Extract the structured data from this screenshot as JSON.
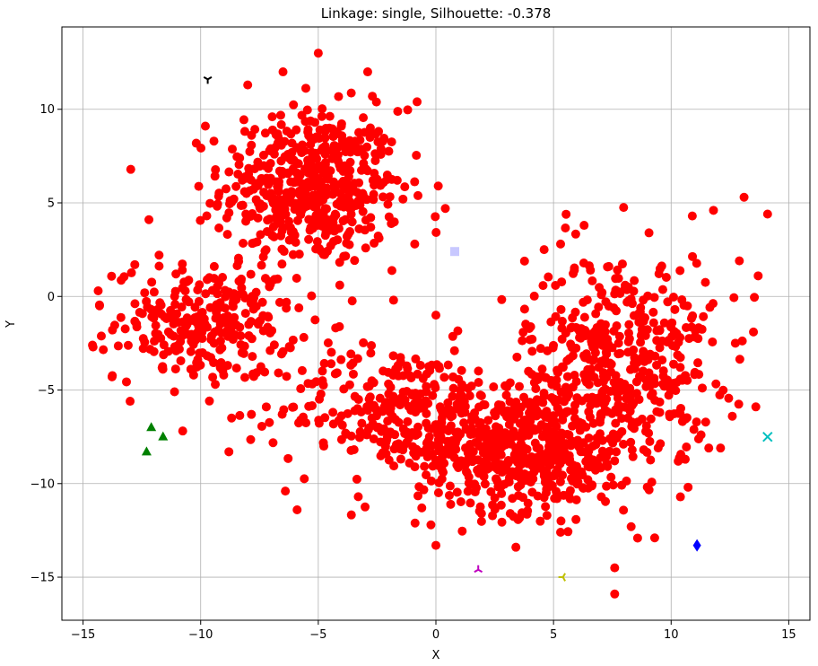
{
  "chart_data": {
    "type": "scatter",
    "title": "Linkage: single, Silhouette: -0.378",
    "xlabel": "X",
    "ylabel": "Y",
    "xlim": [
      -15.9,
      15.9
    ],
    "ylim": [
      -17.3,
      14.4
    ],
    "xticks": [
      -15,
      -10,
      -5,
      0,
      5,
      10,
      15
    ],
    "xtick_labels": [
      "−15",
      "−10",
      "−5",
      "0",
      "5",
      "10",
      "15"
    ],
    "yticks": [
      -15,
      -10,
      -5,
      0,
      5,
      10
    ],
    "ytick_labels": [
      "−15",
      "−10",
      "−5",
      "0",
      "5",
      "10"
    ],
    "grid": true,
    "series": [
      {
        "marker": "circle",
        "color": "#ff0000",
        "clusters": [
          {
            "center": [
              -5.3,
              5.8
            ],
            "spread": [
              1.9,
              2.1
            ],
            "count": 520
          },
          {
            "center": [
              -9.8,
              -1.4
            ],
            "spread": [
              1.9,
              1.5
            ],
            "count": 260
          },
          {
            "center": [
              -1.5,
              -6.0
            ],
            "spread": [
              2.6,
              1.7
            ],
            "count": 300
          },
          {
            "center": [
              3.8,
              -8.3
            ],
            "spread": [
              2.3,
              1.6
            ],
            "count": 520
          },
          {
            "center": [
              7.8,
              -3.3
            ],
            "spread": [
              2.0,
              2.8
            ],
            "count": 430
          }
        ],
        "points": [
          [
            -14.3,
            -0.5
          ],
          [
            -14.6,
            -2.6
          ],
          [
            -12.8,
            1.7
          ],
          [
            -13.0,
            -5.6
          ],
          [
            -12.2,
            4.1
          ],
          [
            -9.8,
            9.1
          ],
          [
            -5.0,
            13.0
          ],
          [
            -6.5,
            12.0
          ],
          [
            -2.9,
            12.0
          ],
          [
            -8.0,
            11.3
          ],
          [
            -0.8,
            10.4
          ],
          [
            0.1,
            5.9
          ],
          [
            0.4,
            4.7
          ],
          [
            -0.9,
            2.8
          ],
          [
            -1.4,
            5.2
          ],
          [
            5.3,
            2.8
          ],
          [
            4.6,
            2.5
          ],
          [
            6.3,
            3.8
          ],
          [
            13.1,
            5.3
          ],
          [
            14.1,
            4.4
          ],
          [
            11.8,
            4.6
          ],
          [
            10.9,
            4.3
          ],
          [
            13.7,
            1.1
          ],
          [
            12.9,
            1.9
          ],
          [
            13.5,
            -1.9
          ],
          [
            13.6,
            -5.9
          ],
          [
            12.6,
            -6.4
          ],
          [
            12.1,
            -8.1
          ],
          [
            11.6,
            -8.1
          ],
          [
            10.6,
            -8.7
          ],
          [
            -6.4,
            -10.4
          ],
          [
            -5.9,
            -11.4
          ],
          [
            -0.6,
            -11.3
          ],
          [
            0.0,
            -13.3
          ],
          [
            3.4,
            -13.4
          ],
          [
            7.6,
            -14.5
          ],
          [
            7.6,
            -15.9
          ],
          [
            9.3,
            -12.9
          ],
          [
            8.3,
            -12.3
          ],
          [
            5.3,
            -12.6
          ],
          [
            -8.8,
            -8.3
          ],
          [
            -10.3,
            -4.2
          ],
          [
            -1.8,
            -0.2
          ],
          [
            0.0,
            -1.0
          ],
          [
            -3.3,
            -10.7
          ]
        ]
      },
      {
        "marker": "square",
        "color": "#c8c8ff",
        "points": [
          [
            0.8,
            2.4
          ]
        ]
      },
      {
        "marker": "triangle",
        "color": "#008000",
        "points": [
          [
            -12.1,
            -7.0
          ],
          [
            -11.6,
            -7.5
          ],
          [
            -12.3,
            -8.3
          ]
        ]
      },
      {
        "marker": "tri_down",
        "color": "#000000",
        "points": [
          [
            -9.7,
            11.6
          ]
        ]
      },
      {
        "marker": "tri_up",
        "color": "#bf00bf",
        "points": [
          [
            1.8,
            -14.6
          ]
        ]
      },
      {
        "marker": "tri_left",
        "color": "#bfbf00",
        "points": [
          [
            5.4,
            -15.0
          ]
        ]
      },
      {
        "marker": "diamond",
        "color": "#0000ff",
        "points": [
          [
            11.1,
            -13.3
          ]
        ]
      },
      {
        "marker": "x",
        "color": "#00bfbf",
        "points": [
          [
            14.1,
            -7.5
          ]
        ]
      }
    ]
  }
}
